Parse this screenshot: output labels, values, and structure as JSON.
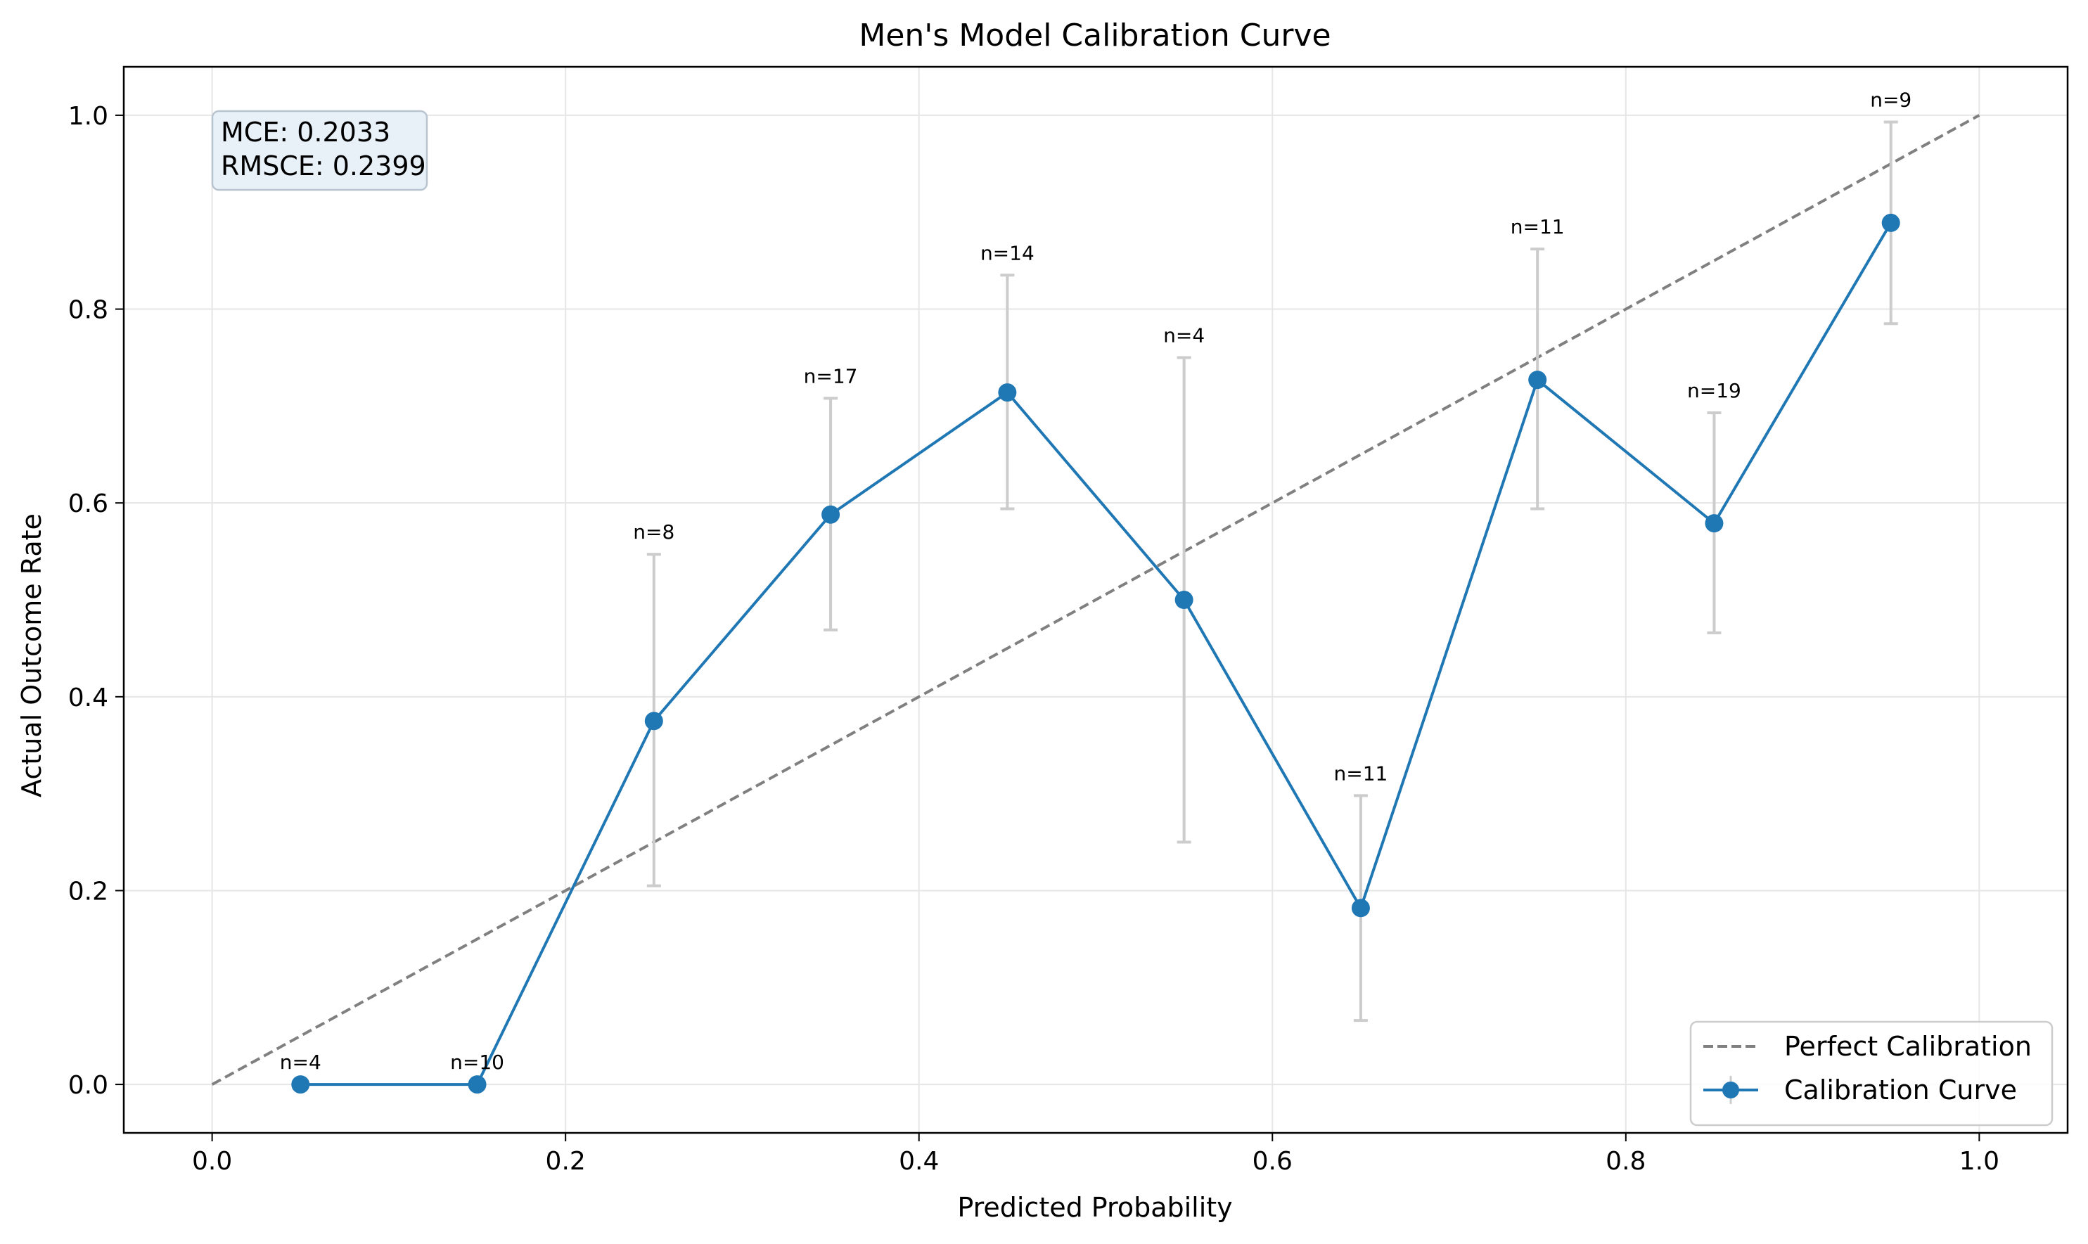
{
  "chart_data": {
    "type": "line",
    "title": "Men's Model Calibration Curve",
    "xlabel": "Predicted Probability",
    "ylabel": "Actual Outcome Rate",
    "xlim": [
      -0.05,
      1.05
    ],
    "ylim": [
      -0.05,
      1.05
    ],
    "xticks": [
      0.0,
      0.2,
      0.4,
      0.6,
      0.8,
      1.0
    ],
    "yticks": [
      0.0,
      0.2,
      0.4,
      0.6,
      0.8,
      1.0
    ],
    "xtick_labels": [
      "0.0",
      "0.2",
      "0.4",
      "0.6",
      "0.8",
      "1.0"
    ],
    "ytick_labels": [
      "0.0",
      "0.2",
      "0.4",
      "0.6",
      "0.8",
      "1.0"
    ],
    "grid": true,
    "legend_position": "lower-right",
    "series": [
      {
        "name": "Perfect Calibration",
        "style": "dashed",
        "color": "#808080",
        "x": [
          0.0,
          1.0
        ],
        "y": [
          0.0,
          1.0
        ]
      },
      {
        "name": "Calibration Curve",
        "style": "solid-marker",
        "color": "#1f77b4",
        "x": [
          0.05,
          0.15,
          0.25,
          0.35,
          0.45,
          0.55,
          0.65,
          0.75,
          0.85,
          0.95
        ],
        "y": [
          0.0,
          0.0,
          0.375,
          0.588,
          0.714,
          0.5,
          0.182,
          0.727,
          0.579,
          0.889
        ],
        "err_low": [
          0.0,
          0.0,
          0.205,
          0.469,
          0.594,
          0.25,
          0.066,
          0.594,
          0.466,
          0.785
        ],
        "err_high": [
          0.0,
          0.0,
          0.547,
          0.708,
          0.835,
          0.75,
          0.298,
          0.862,
          0.693,
          0.993
        ],
        "counts": [
          "n=4",
          "n=10",
          "n=8",
          "n=17",
          "n=14",
          "n=4",
          "n=11",
          "n=11",
          "n=19",
          "n=9"
        ]
      }
    ],
    "metrics": {
      "mce": "MCE: 0.2033",
      "rmsce": "RMSCE: 0.2399"
    },
    "colors": {
      "curve": "#1f77b4",
      "reference": "#808080",
      "errorbar": "#cccccc",
      "grid": "#e6e6e6",
      "metrics_box_fill": "#e8f0f8",
      "metrics_box_stroke": "#b8c4d0"
    }
  }
}
